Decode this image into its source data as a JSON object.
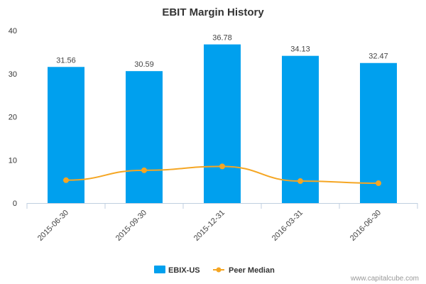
{
  "chart_data": {
    "type": "bar",
    "title": "EBIT Margin History",
    "xlabel": "",
    "ylabel": "",
    "categories": [
      "2015-06-30",
      "2015-09-30",
      "2015-12-31",
      "2016-03-31",
      "2016-06-30"
    ],
    "series": [
      {
        "name": "EBIX-US",
        "type": "bar",
        "color": "#00a0ee",
        "values": [
          31.56,
          30.59,
          36.78,
          34.13,
          32.47
        ],
        "labels": [
          "31.56",
          "30.59",
          "36.78",
          "34.13",
          "32.47"
        ]
      },
      {
        "name": "Peer Median",
        "type": "line",
        "color": "#f5a623",
        "values": [
          5.3,
          7.6,
          8.5,
          5.1,
          4.6
        ]
      }
    ],
    "ylim": [
      0,
      40
    ],
    "yticks": [
      "0",
      "10",
      "20",
      "30",
      "40"
    ],
    "grid": false,
    "legend": "bottom-center"
  },
  "credit": "www.capitalcube.com"
}
